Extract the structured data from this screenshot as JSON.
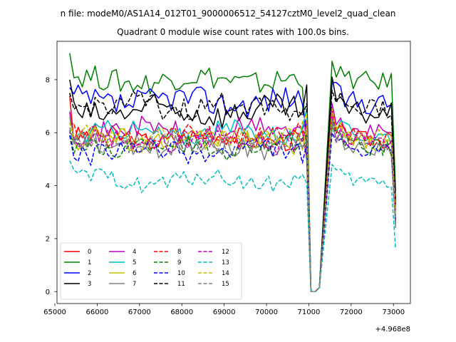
{
  "chart_data": {
    "type": "line",
    "suptitle": "n file: modeM0/AS1A14_012T01_9000006512_54127cztM0_level2_quad_clean",
    "title": "Quadrant 0 module wise count rates with 100.0s bins.",
    "xlabel": "",
    "ylabel": "",
    "x_offset_label": "+4.968e8",
    "xlim": [
      65050,
      73400
    ],
    "ylim": [
      -0.45,
      9.45
    ],
    "x_ticks": [
      65000,
      66000,
      67000,
      68000,
      69000,
      70000,
      71000,
      72000,
      73000
    ],
    "x_tick_labels": [
      "65000",
      "66000",
      "67000",
      "68000",
      "69000",
      "70000",
      "71000",
      "72000",
      "73000"
    ],
    "y_ticks": [
      0,
      2,
      4,
      6,
      8
    ],
    "y_tick_labels": [
      "0",
      "2",
      "4",
      "6",
      "8"
    ],
    "x_start": 65350,
    "x_step": 100,
    "gap": {
      "drop_start": 70950,
      "low_values": [
        71050,
        71150,
        71250
      ],
      "rise_end": 71550
    },
    "data_end": 73050,
    "legend": {
      "placement": "lower-left",
      "columns": 4
    },
    "series": [
      {
        "name": "0",
        "color": "#ff0000",
        "dash": "solid",
        "mean": 5.8,
        "noise": 0.3,
        "start": 7.4,
        "drop_value": 5.0,
        "post_peak": 6.8,
        "end_value": 3.2
      },
      {
        "name": "1",
        "color": "#008000",
        "dash": "solid",
        "mean": 8.0,
        "noise": 0.35,
        "start": 9.0,
        "drop_value": 5.2,
        "post_peak": 8.7,
        "end_value": 3.8
      },
      {
        "name": "2",
        "color": "#0000ff",
        "dash": "solid",
        "mean": 7.2,
        "noise": 0.4,
        "start": 7.7,
        "drop_value": 6.0,
        "post_peak": 7.9,
        "end_value": 3.4
      },
      {
        "name": "3",
        "color": "#000000",
        "dash": "solid",
        "mean": 6.8,
        "noise": 0.4,
        "start": 8.0,
        "drop_value": 7.8,
        "post_peak": 8.1,
        "end_value": 3.3
      },
      {
        "name": "4",
        "color": "#bf00bf",
        "dash": "solid",
        "mean": 6.1,
        "noise": 0.3,
        "start": 6.8,
        "drop_value": 6.5,
        "post_peak": 7.1,
        "end_value": 3.0
      },
      {
        "name": "5",
        "color": "#00bfbf",
        "dash": "solid",
        "mean": 6.0,
        "noise": 0.3,
        "start": 5.9,
        "drop_value": 6.9,
        "post_peak": 6.5,
        "end_value": 2.6
      },
      {
        "name": "6",
        "color": "#bfbf00",
        "dash": "solid",
        "mean": 5.7,
        "noise": 0.35,
        "start": 5.8,
        "drop_value": 6.2,
        "post_peak": 6.6,
        "end_value": 2.8
      },
      {
        "name": "7",
        "color": "#808080",
        "dash": "solid",
        "mean": 5.5,
        "noise": 0.3,
        "start": 6.6,
        "drop_value": 5.5,
        "post_peak": 6.3,
        "end_value": 2.5
      },
      {
        "name": "8",
        "color": "#ff0000",
        "dash": "dashed",
        "mean": 5.9,
        "noise": 0.3,
        "start": 6.3,
        "drop_value": 5.8,
        "post_peak": 6.9,
        "end_value": 3.1
      },
      {
        "name": "9",
        "color": "#008000",
        "dash": "dashed",
        "mean": 5.5,
        "noise": 0.3,
        "start": 6.1,
        "drop_value": 5.9,
        "post_peak": 6.2,
        "end_value": 2.9
      },
      {
        "name": "10",
        "color": "#0000ff",
        "dash": "dashed",
        "mean": 5.3,
        "noise": 0.3,
        "start": 5.9,
        "drop_value": 5.6,
        "post_peak": 6.0,
        "end_value": 2.7
      },
      {
        "name": "11",
        "color": "#000000",
        "dash": "dashed",
        "mean": 7.0,
        "noise": 0.35,
        "start": 7.5,
        "drop_value": 7.1,
        "post_peak": 7.6,
        "end_value": 3.5
      },
      {
        "name": "12",
        "color": "#bf00bf",
        "dash": "dashed",
        "mean": 5.7,
        "noise": 0.3,
        "start": 6.0,
        "drop_value": 6.4,
        "post_peak": 6.6,
        "end_value": 2.9
      },
      {
        "name": "13",
        "color": "#00bfbf",
        "dash": "dashed",
        "mean": 4.2,
        "noise": 0.25,
        "start": 4.95,
        "drop_value": 4.1,
        "post_peak": 4.8,
        "end_value": 1.6
      },
      {
        "name": "14",
        "color": "#bfbf00",
        "dash": "dashed",
        "mean": 5.9,
        "noise": 0.3,
        "start": 6.4,
        "drop_value": 6.7,
        "post_peak": 6.9,
        "end_value": 2.9
      },
      {
        "name": "15",
        "color": "#808080",
        "dash": "dashed",
        "mean": 5.6,
        "noise": 0.3,
        "start": 6.2,
        "drop_value": 5.7,
        "post_peak": 6.4,
        "end_value": 2.4
      }
    ]
  }
}
